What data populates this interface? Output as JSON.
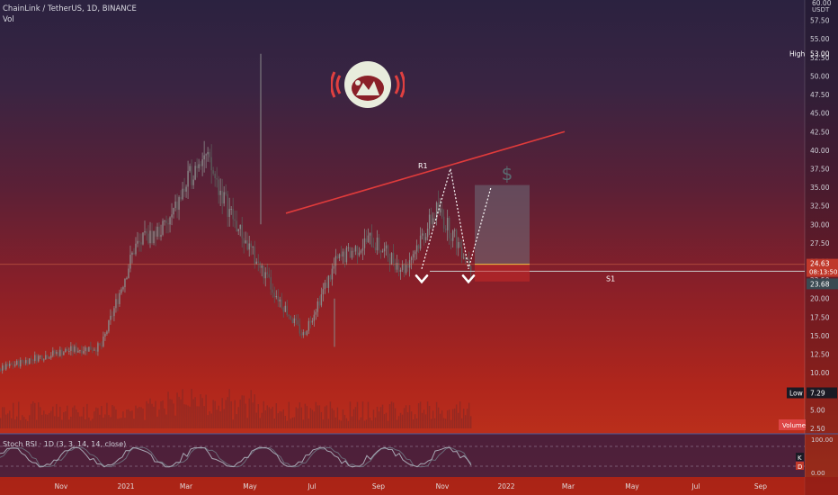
{
  "header": {
    "symbol_line": "ChainLink / TetherUS, 1D, BINANCE",
    "volume_label": "Vol"
  },
  "price_axis": {
    "unit": "USDT",
    "ticks": [
      "60.00",
      "57.50",
      "55.00",
      "52.50",
      "50.00",
      "47.50",
      "45.00",
      "42.50",
      "40.00",
      "37.50",
      "35.00",
      "32.50",
      "30.00",
      "27.50",
      "25.00",
      "22.50",
      "20.00",
      "17.50",
      "15.00",
      "12.50",
      "10.00",
      "7.50",
      "5.00",
      "2.50"
    ],
    "high_label": "High",
    "high_value": "53.00",
    "low_label": "Low",
    "low_value": "7.29",
    "last_price": "24.63",
    "countdown": "08:13:50",
    "support_price": "23.68",
    "volume_tag": "Volume"
  },
  "time_axis": {
    "labels": [
      "Nov",
      "2021",
      "Mar",
      "May",
      "Jul",
      "Sep",
      "Nov",
      "2022",
      "Mar",
      "May",
      "Jul",
      "Sep"
    ]
  },
  "annotations": {
    "resistance_label": "R1",
    "support_label": "S1",
    "target_symbol": "$"
  },
  "oscillator": {
    "label": "Stoch RSI · 1D (3, 3, 14, 14, close)",
    "ticks": [
      "100.00",
      "0.00"
    ],
    "k_label": "K",
    "d_label": "D"
  },
  "colors": {
    "candle_up": "#8a8a8a",
    "candle_down": "#5a5a5a",
    "resistance": "#e03b3b",
    "support": "#c8c8c8",
    "target_box": "#6e6e7a"
  },
  "chart_data": {
    "type": "line",
    "ylim": [
      2.5,
      60
    ],
    "x": [
      "2020-10",
      "2020-11",
      "2020-12",
      "2021-01",
      "2021-02",
      "2021-03",
      "2021-04",
      "2021-05",
      "2021-06",
      "2021-07",
      "2021-08",
      "2021-09",
      "2021-10",
      "2021-11",
      "2021-12"
    ],
    "series": [
      {
        "values": [
          10.5,
          12.0,
          13.0,
          13.5,
          27.0,
          30.0,
          40.0,
          30.0,
          22.0,
          15.0,
          25.0,
          28.0,
          24.0,
          32.0,
          24.6
        ]
      }
    ],
    "resistance_R1": {
      "from": [
        "2021-05",
        31.5
      ],
      "to": [
        "2022-03",
        42.5
      ]
    },
    "support_S1": 23.68,
    "high": 53.0,
    "low": 7.29
  }
}
